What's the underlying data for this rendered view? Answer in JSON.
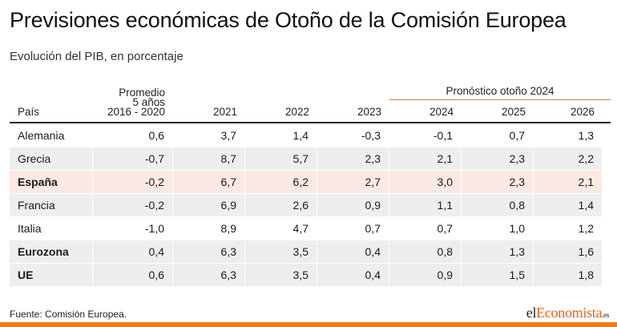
{
  "header": {
    "title": "Previsiones económicas de Otoño de la Comisión Europea",
    "subtitle": "Evolución del PIB, en porcentaje"
  },
  "table": {
    "forecast_group_label": "Pronóstico otoño 2024",
    "columns": [
      "País",
      "Promedio\n5 años\n2016 - 2020",
      "2021",
      "2022",
      "2023",
      "2024",
      "2025",
      "2026"
    ],
    "rows": [
      {
        "country": "Alemania",
        "values": [
          "0,6",
          "3,7",
          "1,4",
          "-0,3",
          "-0,1",
          "0,7",
          "1,3"
        ],
        "style": "plain"
      },
      {
        "country": "Grecia",
        "values": [
          "-0,7",
          "8,7",
          "5,7",
          "2,3",
          "2,1",
          "2,3",
          "2,2"
        ],
        "style": "shade"
      },
      {
        "country": "España",
        "values": [
          "-0,2",
          "6,7",
          "6,2",
          "2,7",
          "3,0",
          "2,3",
          "2,1"
        ],
        "style": "highlight"
      },
      {
        "country": "Francia",
        "values": [
          "-0,2",
          "6,9",
          "2,6",
          "0,9",
          "1,1",
          "0,8",
          "1,4"
        ],
        "style": "shade"
      },
      {
        "country": "Italia",
        "values": [
          "-1,0",
          "8,9",
          "4,7",
          "0,7",
          "0,7",
          "1,0",
          "1,2"
        ],
        "style": "plain"
      },
      {
        "country": "Eurozona",
        "values": [
          "0,4",
          "6,3",
          "3,5",
          "0,4",
          "0,8",
          "1,3",
          "1,6"
        ],
        "style": "shade"
      },
      {
        "country": "UE",
        "values": [
          "0,6",
          "6,3",
          "3,5",
          "0,4",
          "0,9",
          "1,5",
          "1,8"
        ],
        "style": "shade"
      }
    ]
  },
  "footer": {
    "source": "Fuente: Comisión Europea.",
    "logo_part1": "el",
    "logo_part2": "Economista",
    "logo_suffix": ".es"
  },
  "colors": {
    "accent": "#f07a1a",
    "highlight_row": "#fde9e3",
    "shade_row": "#eeeeee"
  }
}
